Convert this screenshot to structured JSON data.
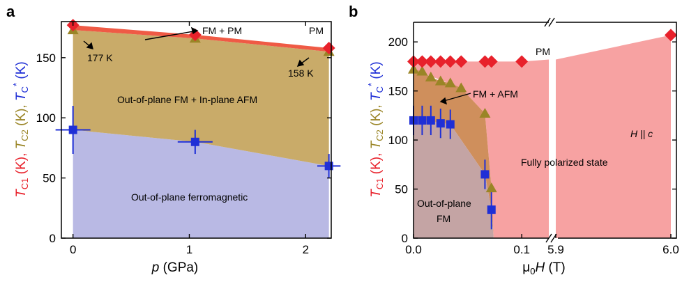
{
  "colors": {
    "red": "#e8212b",
    "red_fill": "#f7a2a2",
    "gold": "#9a8526",
    "gold_fill": "#c9ab69",
    "blue": "#1f2fd6",
    "blue_fill": "#b9b9e4",
    "mixed_fill": "#c4a4a4",
    "orange_fill": "#cf8f5c",
    "red_band": "#ef5a45"
  },
  "chart_data": [
    {
      "panel": "a",
      "type": "scatter",
      "xlabel": "p (GPa)",
      "ylabel": "TC1 (K), TC2 (K), TC* (K)",
      "xlim": [
        -0.1,
        2.22
      ],
      "ylim": [
        0,
        180
      ],
      "xticks": [
        "0",
        "1",
        "2"
      ],
      "yticks": [
        "0",
        "50",
        "100",
        "150"
      ],
      "series": [
        {
          "marker": "diamond",
          "color": "red",
          "x": [
            0,
            1.05,
            2.2
          ],
          "y": [
            177,
            169,
            158
          ]
        },
        {
          "marker": "triangle",
          "color": "gold",
          "x": [
            0,
            1.05,
            2.2
          ],
          "y": [
            173,
            166,
            155
          ]
        },
        {
          "marker": "square",
          "color": "blue",
          "x": [
            0,
            1.05,
            2.2
          ],
          "y": [
            90,
            80,
            60
          ],
          "yerr": [
            20,
            10,
            10
          ],
          "xerr": [
            0.15,
            0.15,
            0.1
          ]
        }
      ],
      "annotations": {
        "fm_pm": "FM + PM",
        "pm": "PM",
        "t177": "177 K",
        "t158": "158 K",
        "fm_afm": "Out-of-plane FM + In-plane AFM",
        "ferro": "Out-of-plane ferromagnetic"
      }
    },
    {
      "panel": "b",
      "type": "scatter",
      "xlabel": "μ0H (T)",
      "ylabel": "TC1 (K), TC2 (K), TC* (K)",
      "ylim": [
        0,
        220
      ],
      "broken_x_axis": {
        "left_range": [
          0,
          0.125
        ],
        "right_range": [
          5.9,
          6.0
        ]
      },
      "xticks": [
        "0.0",
        "0.1",
        "5.9",
        "6.0"
      ],
      "yticks": [
        "0",
        "50",
        "100",
        "150",
        "200"
      ],
      "series": [
        {
          "marker": "diamond",
          "color": "red",
          "x": [
            0,
            0.008,
            0.016,
            0.025,
            0.034,
            0.044,
            0.066,
            0.072,
            0.1,
            6.0
          ],
          "y": [
            180,
            180,
            180,
            180,
            180,
            180,
            180,
            180,
            180,
            207
          ]
        },
        {
          "marker": "triangle",
          "color": "gold",
          "x": [
            0,
            0.008,
            0.016,
            0.025,
            0.034,
            0.044,
            0.066,
            0.072
          ],
          "y": [
            172,
            170,
            164,
            160,
            158,
            153,
            127,
            51
          ]
        },
        {
          "marker": "square",
          "color": "blue",
          "x": [
            0,
            0.008,
            0.016,
            0.025,
            0.034,
            0.066,
            0.072
          ],
          "y": [
            120,
            120,
            120,
            117,
            116,
            65,
            29
          ],
          "yerr": [
            15,
            15,
            15,
            15,
            15,
            15,
            20
          ]
        }
      ],
      "annotations": {
        "pm": "PM",
        "fm_afm": "FM + AFM",
        "hc": "H || c",
        "fully": "Fully polarized state",
        "oop1": "Out-of-plane",
        "oop2": "FM"
      }
    }
  ],
  "panel_labels": {
    "a": "a",
    "b": "b"
  }
}
